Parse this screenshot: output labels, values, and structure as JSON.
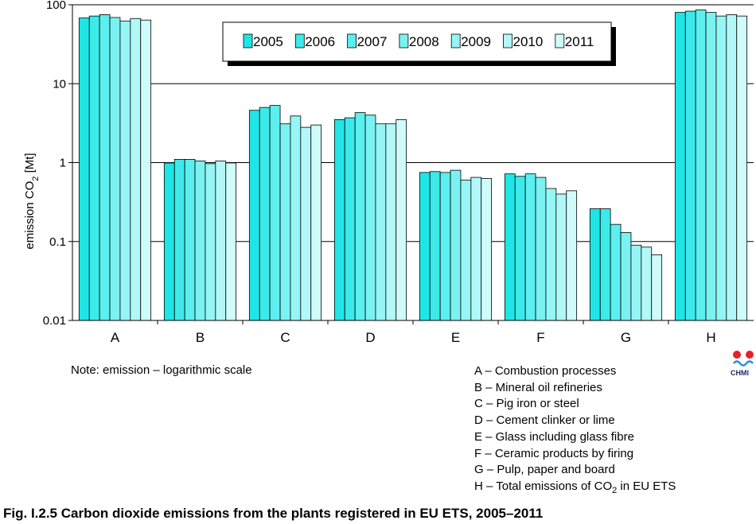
{
  "chart_data": {
    "type": "bar",
    "yscale": "log",
    "ylim": [
      0.01,
      100
    ],
    "ylabel": "emission CO2 [Mt]",
    "ylabel_parts": {
      "main": "emission CO",
      "sub": "2",
      "unit": " [Mt]"
    },
    "ytick_labels": [
      "0.01",
      "0.1",
      "1",
      "10",
      "100"
    ],
    "ytick_values": [
      0.01,
      0.1,
      1,
      10,
      100
    ],
    "grid": true,
    "legend_placement": "top-center",
    "categories": [
      "A",
      "B",
      "C",
      "D",
      "E",
      "F",
      "G",
      "H"
    ],
    "series": [
      {
        "name": "2005",
        "color": "#1ee6e6",
        "values": [
          68,
          0.99,
          4.6,
          3.5,
          0.75,
          0.72,
          0.26,
          80
        ]
      },
      {
        "name": "2006",
        "color": "#3deaea",
        "values": [
          72,
          1.1,
          5.0,
          3.7,
          0.77,
          0.67,
          0.26,
          83
        ]
      },
      {
        "name": "2007",
        "color": "#5cefef",
        "values": [
          75,
          1.1,
          5.3,
          4.3,
          0.75,
          0.72,
          0.165,
          86
        ]
      },
      {
        "name": "2008",
        "color": "#7af2f2",
        "values": [
          69,
          1.05,
          3.1,
          4.0,
          0.8,
          0.65,
          0.13,
          80
        ]
      },
      {
        "name": "2009",
        "color": "#96f5f5",
        "values": [
          62,
          0.97,
          3.9,
          3.1,
          0.6,
          0.47,
          0.09,
          72
        ]
      },
      {
        "name": "2010",
        "color": "#b3f8f8",
        "values": [
          67,
          1.05,
          2.8,
          3.1,
          0.65,
          0.4,
          0.085,
          75
        ]
      },
      {
        "name": "2011",
        "color": "#d0fbfb",
        "values": [
          64,
          0.99,
          3.0,
          3.5,
          0.63,
          0.44,
          0.068,
          72
        ]
      }
    ]
  },
  "note": "Note: emission – logarithmic scale",
  "category_legend": [
    "A – Combustion processes",
    "B – Mineral oil refineries",
    "C – Pig iron or steel",
    "D – Cement clinker or lime",
    "E – Glass including glass fibre",
    "F – Ceramic products by firing",
    "G – Pulp, paper and board"
  ],
  "category_legend_h": {
    "prefix": "H – Total emissions of CO",
    "sub": "2",
    "suffix": " in EU ETS"
  },
  "caption": "Fig. I.2.5  Carbon dioxide emissions from the plants registered in EU ETS, 2005–2011",
  "logo": {
    "text": "CHMI",
    "dot_color": "#e8202a",
    "text_color": "#1a2a6c"
  }
}
